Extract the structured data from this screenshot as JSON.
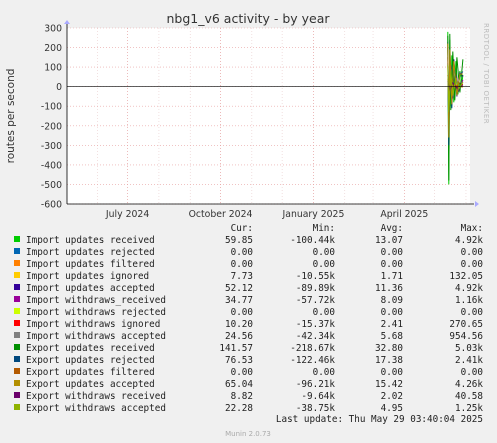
{
  "chart_data": {
    "type": "line",
    "title": "nbg1_v6 activity - by year",
    "ylabel": "routes per second",
    "ylim": [
      -600,
      300
    ],
    "yticks": [
      300,
      200,
      100,
      0,
      -100,
      -200,
      -300,
      -400,
      -500,
      -600
    ],
    "x_range": [
      "2024-05-02",
      "2025-06-05"
    ],
    "x_ticks": [
      {
        "date": "2024-07-01",
        "label": "July 2024"
      },
      {
        "date": "2024-10-01",
        "label": "October 2024"
      },
      {
        "date": "2025-01-01",
        "label": "January 2025"
      },
      {
        "date": "2025-04-01",
        "label": "April 2025"
      }
    ],
    "grid": true,
    "watermark": "RRDTOOL / TOBI OETIKER",
    "columns": [
      "Cur:",
      "Min:",
      "Avg:",
      "Max:"
    ],
    "series": [
      {
        "name": "Import updates received",
        "color": "#00cc00",
        "cur": "59.85",
        "min": "-100.44k",
        "avg": "13.07",
        "max": "4.92k",
        "points": [
          [
            "2025-05-14",
            280
          ],
          [
            "2025-05-15",
            -500
          ],
          [
            "2025-05-16",
            240
          ],
          [
            "2025-05-17",
            -100
          ],
          [
            "2025-05-18",
            160
          ],
          [
            "2025-05-20",
            -80
          ],
          [
            "2025-05-22",
            130
          ],
          [
            "2025-05-24",
            -40
          ],
          [
            "2025-05-26",
            80
          ],
          [
            "2025-05-28",
            20
          ],
          [
            "2025-05-29",
            60
          ]
        ]
      },
      {
        "name": "Import updates rejected",
        "color": "#0066b3",
        "cur": "0.00",
        "min": "0.00",
        "avg": "0.00",
        "max": "0.00",
        "points": [
          [
            "2025-05-14",
            0
          ],
          [
            "2025-05-29",
            0
          ]
        ]
      },
      {
        "name": "Import updates filtered",
        "color": "#ff8000",
        "cur": "0.00",
        "min": "0.00",
        "avg": "0.00",
        "max": "0.00",
        "points": [
          [
            "2025-05-14",
            0
          ],
          [
            "2025-05-29",
            0
          ]
        ]
      },
      {
        "name": "Import updates ignored",
        "color": "#ffcc00",
        "cur": "7.73",
        "min": "-10.55k",
        "avg": "1.71",
        "max": "132.05",
        "points": [
          [
            "2025-05-14",
            40
          ],
          [
            "2025-05-16",
            -30
          ],
          [
            "2025-05-18",
            30
          ],
          [
            "2025-05-21",
            -10
          ],
          [
            "2025-05-24",
            15
          ],
          [
            "2025-05-29",
            8
          ]
        ]
      },
      {
        "name": "Import updates accepted",
        "color": "#330099",
        "cur": "52.12",
        "min": "-89.89k",
        "avg": "11.36",
        "max": "4.92k",
        "points": [
          [
            "2025-05-14",
            230
          ],
          [
            "2025-05-15",
            -250
          ],
          [
            "2025-05-16",
            200
          ],
          [
            "2025-05-18",
            -90
          ],
          [
            "2025-05-20",
            140
          ],
          [
            "2025-05-23",
            -50
          ],
          [
            "2025-05-26",
            70
          ],
          [
            "2025-05-29",
            52
          ]
        ]
      },
      {
        "name": "Import withdraws_received",
        "color": "#990099",
        "cur": "34.77",
        "min": "-57.72k",
        "avg": "8.09",
        "max": "1.16k",
        "points": [
          [
            "2025-05-14",
            150
          ],
          [
            "2025-05-15",
            -180
          ],
          [
            "2025-05-17",
            110
          ],
          [
            "2025-05-19",
            -60
          ],
          [
            "2025-05-22",
            70
          ],
          [
            "2025-05-25",
            -20
          ],
          [
            "2025-05-29",
            35
          ]
        ]
      },
      {
        "name": "Import withdraws rejected",
        "color": "#ccff00",
        "cur": "0.00",
        "min": "0.00",
        "avg": "0.00",
        "max": "0.00",
        "points": [
          [
            "2025-05-14",
            0
          ],
          [
            "2025-05-29",
            0
          ]
        ]
      },
      {
        "name": "Import withdraws ignored",
        "color": "#ff0000",
        "cur": "10.20",
        "min": "-15.37k",
        "avg": "2.41",
        "max": "270.65",
        "points": [
          [
            "2025-05-14",
            60
          ],
          [
            "2025-05-16",
            -40
          ],
          [
            "2025-05-18",
            40
          ],
          [
            "2025-05-21",
            -15
          ],
          [
            "2025-05-25",
            20
          ],
          [
            "2025-05-29",
            10
          ]
        ]
      },
      {
        "name": "Import withdraws accepted",
        "color": "#808080",
        "cur": "24.56",
        "min": "-42.34k",
        "avg": "5.68",
        "max": "954.56",
        "points": [
          [
            "2025-05-14",
            120
          ],
          [
            "2025-05-15",
            -140
          ],
          [
            "2025-05-17",
            90
          ],
          [
            "2025-05-19",
            -50
          ],
          [
            "2025-05-22",
            50
          ],
          [
            "2025-05-25",
            -10
          ],
          [
            "2025-05-29",
            25
          ]
        ]
      },
      {
        "name": "Export updates received",
        "color": "#008f00",
        "cur": "141.57",
        "min": "-218.67k",
        "avg": "32.80",
        "max": "5.03k",
        "points": [
          [
            "2025-05-14",
            260
          ],
          [
            "2025-05-15",
            -480
          ],
          [
            "2025-05-16",
            270
          ],
          [
            "2025-05-17",
            -120
          ],
          [
            "2025-05-19",
            180
          ],
          [
            "2025-05-21",
            -70
          ],
          [
            "2025-05-23",
            150
          ],
          [
            "2025-05-26",
            -30
          ],
          [
            "2025-05-29",
            140
          ]
        ]
      },
      {
        "name": "Export updates rejected",
        "color": "#00487d",
        "cur": "76.53",
        "min": "-122.46k",
        "avg": "17.38",
        "max": "2.41k",
        "points": [
          [
            "2025-05-14",
            200
          ],
          [
            "2025-05-15",
            -300
          ],
          [
            "2025-05-16",
            170
          ],
          [
            "2025-05-18",
            -110
          ],
          [
            "2025-05-20",
            120
          ],
          [
            "2025-05-23",
            -40
          ],
          [
            "2025-05-26",
            60
          ],
          [
            "2025-05-29",
            77
          ]
        ]
      },
      {
        "name": "Export updates filtered",
        "color": "#b35a00",
        "cur": "0.00",
        "min": "0.00",
        "avg": "0.00",
        "max": "0.00",
        "points": [
          [
            "2025-05-14",
            0
          ],
          [
            "2025-05-29",
            0
          ]
        ]
      },
      {
        "name": "Export updates accepted",
        "color": "#b38f00",
        "cur": "65.04",
        "min": "-96.21k",
        "avg": "15.42",
        "max": "4.26k",
        "points": [
          [
            "2025-05-14",
            220
          ],
          [
            "2025-05-15",
            -260
          ],
          [
            "2025-05-16",
            190
          ],
          [
            "2025-05-18",
            -90
          ],
          [
            "2025-05-20",
            130
          ],
          [
            "2025-05-23",
            -45
          ],
          [
            "2025-05-26",
            65
          ],
          [
            "2025-05-29",
            65
          ]
        ]
      },
      {
        "name": "Export withdraws received",
        "color": "#6b006b",
        "cur": "8.82",
        "min": "-9.64k",
        "avg": "2.02",
        "max": "40.58",
        "points": [
          [
            "2025-05-14",
            30
          ],
          [
            "2025-05-16",
            -20
          ],
          [
            "2025-05-19",
            20
          ],
          [
            "2025-05-23",
            -8
          ],
          [
            "2025-05-29",
            9
          ]
        ]
      },
      {
        "name": "Export withdraws accepted",
        "color": "#8fb300",
        "cur": "22.28",
        "min": "-38.75k",
        "avg": "4.95",
        "max": "1.25k",
        "points": [
          [
            "2025-05-14",
            110
          ],
          [
            "2025-05-15",
            -130
          ],
          [
            "2025-05-17",
            80
          ],
          [
            "2025-05-19",
            -45
          ],
          [
            "2025-05-22",
            45
          ],
          [
            "2025-05-25",
            -10
          ],
          [
            "2025-05-29",
            22
          ]
        ]
      }
    ],
    "last_update": "Last update: Thu May 29 03:40:04 2025",
    "footer": "Munin 2.0.73"
  }
}
